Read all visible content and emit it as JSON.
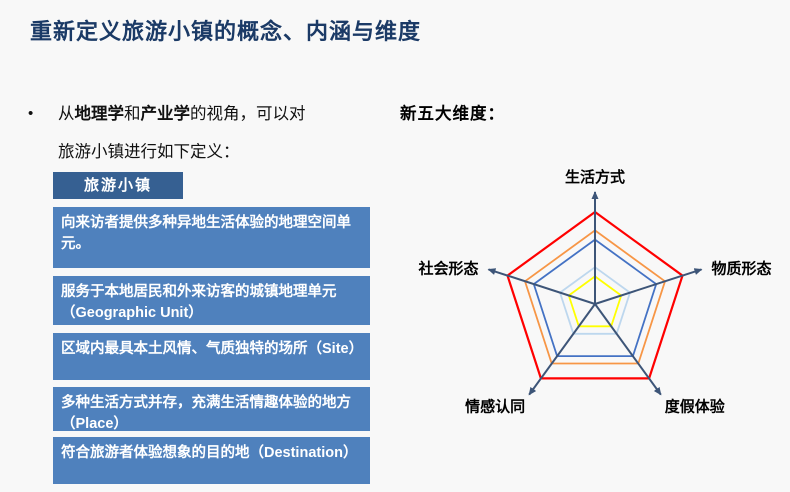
{
  "slide": {
    "title": "重新定义旅游小镇的概念、内涵与维度"
  },
  "intro": {
    "bullet": "•",
    "seg1": "从",
    "bold1": "地理学",
    "seg2": "和",
    "bold2": "产业学",
    "seg3": "的视角，可以对",
    "line2": "旅游小镇进行如下定义："
  },
  "definitions": {
    "header": "旅游小镇",
    "items": [
      "向来访者提供多种异地生活体验的地理空间单元。",
      "服务于本地居民和外来访客的城镇地理单元（Geographic Unit）",
      "区域内最具本土风情、气质独特的场所（Site）",
      "多种生活方式并存，充满生活情趣体验的地方（Place）",
      "符合旅游者体验想象的目的地（Destination）"
    ]
  },
  "radar": {
    "heading": "新五大维度："
  },
  "chart_data": {
    "type": "radar",
    "title": "新五大维度",
    "categories": [
      "生活方式",
      "物质形态",
      "度假体验",
      "情感认同",
      "社会形态"
    ],
    "max": 5,
    "series": [
      {
        "name": "outer-ring",
        "color": "#FF0000",
        "values": [
          5,
          5,
          5,
          5,
          5
        ]
      },
      {
        "name": "ring-2",
        "color": "#F79646",
        "values": [
          4,
          4,
          4,
          4,
          4
        ]
      },
      {
        "name": "ring-3",
        "color": "#4472C4",
        "values": [
          3.5,
          3.5,
          3.5,
          3.5,
          3.5
        ]
      },
      {
        "name": "ring-4",
        "color": "#BDD7EE",
        "values": [
          2,
          2,
          2,
          2,
          2
        ]
      },
      {
        "name": "inner-ring",
        "color": "#FFFF00",
        "values": [
          1.5,
          1.5,
          1.5,
          1.5,
          1.5
        ]
      }
    ],
    "axis_color": "#3D5578",
    "label_color": "#000000",
    "legend": "none",
    "gridlines": false
  },
  "palette": {
    "background": "#f8f8f8",
    "title_navy": "#1b3a66",
    "header_blue": "#366092",
    "box_blue": "#4F81BD"
  }
}
